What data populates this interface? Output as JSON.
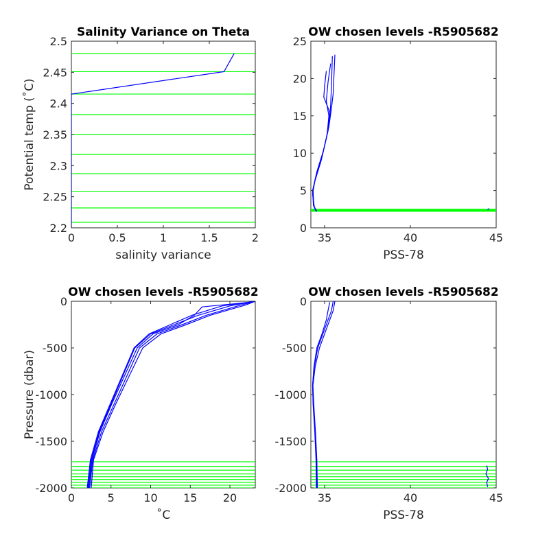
{
  "colors": {
    "profile": "#0000ff",
    "levels": "#00ff00",
    "axis": "#262626"
  },
  "chart_data": [
    {
      "type": "line",
      "title": "Salinity Variance on Theta",
      "xlabel": "salinity variance",
      "ylabel": "Potential temp (˚C)",
      "xlim": [
        0,
        2
      ],
      "ylim": [
        2.2,
        2.5
      ],
      "xticks": [
        0,
        0.5,
        1,
        1.5,
        2
      ],
      "xtick_labels": [
        "0",
        "0.5",
        "1",
        "1.5",
        "2"
      ],
      "yticks": [
        2.2,
        2.25,
        2.3,
        2.35,
        2.4,
        2.45,
        2.5
      ],
      "ytick_labels": [
        "2.2",
        "2.25",
        "2.3",
        "2.35",
        "2.4",
        "2.45",
        "2.5"
      ],
      "hlines": [
        2.209,
        2.232,
        2.258,
        2.287,
        2.318,
        2.35,
        2.382,
        2.415,
        2.451,
        2.48
      ],
      "series": [
        {
          "x": [
            0,
            0,
            0,
            1.66,
            1.77
          ],
          "y": [
            2.2,
            2.3,
            2.415,
            2.451,
            2.48
          ]
        }
      ]
    },
    {
      "type": "line",
      "title": "OW chosen levels -R5905682",
      "xlabel": "PSS-78",
      "ylabel": "",
      "xlim": [
        34.2,
        45
      ],
      "ylim": [
        0,
        25
      ],
      "xticks": [
        35,
        40,
        45
      ],
      "xtick_labels": [
        "35",
        "40",
        "45"
      ],
      "yticks": [
        0,
        5,
        10,
        15,
        20,
        25
      ],
      "ytick_labels": [
        "0",
        "5",
        "10",
        "15",
        "20",
        "25"
      ],
      "hlines": [
        2.21,
        2.23,
        2.26,
        2.29,
        2.32,
        2.35,
        2.38,
        2.415,
        2.45,
        2.48
      ],
      "series": [
        {
          "x": [
            34.55,
            34.4,
            34.3,
            34.4,
            34.8,
            35.1,
            35.3,
            35.35,
            35.4,
            35.45
          ],
          "y": [
            2.2,
            2.8,
            4.5,
            6,
            9,
            12,
            14.5,
            16.5,
            19,
            23
          ]
        },
        {
          "x": [
            34.55,
            34.38,
            34.32,
            34.45,
            34.85,
            35.15,
            35.25,
            35.1,
            35.2,
            35.35
          ],
          "y": [
            2.2,
            2.9,
            4.8,
            6.5,
            9.5,
            12.5,
            15,
            17,
            19.5,
            22
          ]
        },
        {
          "x": [
            34.5,
            34.35,
            34.3,
            34.5,
            34.9,
            35.2,
            35.3,
            34.95,
            35.0,
            35.1
          ],
          "y": [
            2.25,
            3.0,
            5.0,
            7,
            10,
            13,
            15.5,
            17.5,
            19,
            21
          ]
        },
        {
          "x": [
            34.5,
            34.36,
            34.33,
            34.55,
            34.95,
            35.25,
            35.4,
            35.5,
            35.55,
            35.6
          ],
          "y": [
            2.25,
            3.1,
            5.2,
            7.5,
            10.5,
            13.5,
            16,
            18,
            20.5,
            23.2
          ]
        },
        {
          "x": [
            44.5,
            44.6
          ],
          "y": [
            2.4,
            2.6
          ]
        }
      ]
    },
    {
      "type": "line",
      "title": "OW chosen levels -R5905682",
      "xlabel": "˚C",
      "ylabel": "Pressure (dbar)",
      "xlim": [
        0,
        23.2
      ],
      "ylim": [
        -2000,
        0
      ],
      "xticks": [
        0,
        5,
        10,
        15,
        20
      ],
      "xtick_labels": [
        "0",
        "5",
        "10",
        "15",
        "20"
      ],
      "yticks": [
        -2000,
        -1500,
        -1000,
        -500,
        0
      ],
      "ytick_labels": [
        "-2000",
        "-1500",
        "-1000",
        "-500",
        "0"
      ],
      "hlines": [
        -1720,
        -1770,
        -1810,
        -1850,
        -1880,
        -1910,
        -1940,
        -1970,
        -2000
      ],
      "series": [
        {
          "x": [
            2.1,
            2.5,
            3.5,
            5,
            6.5,
            8,
            10,
            13,
            16,
            20,
            23.2
          ],
          "y": [
            -2000,
            -1700,
            -1400,
            -1100,
            -800,
            -500,
            -350,
            -250,
            -150,
            -50,
            0
          ]
        },
        {
          "x": [
            2.3,
            2.7,
            3.8,
            5.4,
            7.0,
            8.6,
            10.8,
            14,
            17,
            21,
            23.2
          ],
          "y": [
            -2000,
            -1700,
            -1400,
            -1100,
            -800,
            -500,
            -350,
            -250,
            -150,
            -50,
            0
          ]
        },
        {
          "x": [
            2.2,
            2.6,
            3.6,
            5.1,
            6.7,
            8.3,
            10.3,
            13.5,
            15.5,
            16.5,
            23.2
          ],
          "y": [
            -2000,
            -1700,
            -1400,
            -1100,
            -800,
            -500,
            -350,
            -250,
            -150,
            -60,
            -5
          ]
        },
        {
          "x": [
            2.5,
            2.8,
            4.0,
            5.6,
            7.3,
            9.0,
            11.3,
            14.5,
            17.5,
            22,
            23.2
          ],
          "y": [
            -2000,
            -1700,
            -1400,
            -1100,
            -800,
            -500,
            -350,
            -250,
            -150,
            -40,
            0
          ]
        },
        {
          "x": [
            2.0,
            2.4,
            3.4,
            4.9,
            6.4,
            7.9,
            9.8,
            12.5,
            15.2,
            19,
            23.2
          ],
          "y": [
            -2000,
            -1700,
            -1400,
            -1100,
            -800,
            -500,
            -350,
            -250,
            -150,
            -50,
            0
          ]
        }
      ]
    },
    {
      "type": "line",
      "title": "OW chosen levels -R5905682",
      "xlabel": "PSS-78",
      "ylabel": "",
      "xlim": [
        34.2,
        45
      ],
      "ylim": [
        -2000,
        0
      ],
      "xticks": [
        35,
        40,
        45
      ],
      "xtick_labels": [
        "35",
        "40",
        "45"
      ],
      "yticks": [
        -2000,
        -1500,
        -1000,
        -500,
        0
      ],
      "ytick_labels": [
        "-2000",
        "-1500",
        "-1000",
        "-500",
        "0"
      ],
      "hlines": [
        -1720,
        -1770,
        -1810,
        -1850,
        -1880,
        -1910,
        -1940,
        -1970,
        -2000
      ],
      "series": [
        {
          "x": [
            34.55,
            34.53,
            34.45,
            34.35,
            34.3,
            34.4,
            34.6,
            34.9,
            35.2,
            35.4,
            35.5
          ],
          "y": [
            -2000,
            -1700,
            -1400,
            -1100,
            -900,
            -700,
            -500,
            -350,
            -200,
            -100,
            0
          ]
        },
        {
          "x": [
            34.58,
            34.55,
            34.47,
            34.37,
            34.32,
            34.45,
            34.7,
            35.0,
            35.3,
            35.5,
            35.6
          ],
          "y": [
            -2000,
            -1700,
            -1400,
            -1100,
            -900,
            -700,
            -500,
            -350,
            -200,
            -100,
            0
          ]
        },
        {
          "x": [
            34.52,
            34.5,
            34.43,
            34.33,
            34.3,
            34.38,
            34.55,
            34.85,
            35.1,
            35.2,
            35.3
          ],
          "y": [
            -2000,
            -1700,
            -1400,
            -1100,
            -900,
            -700,
            -500,
            -350,
            -200,
            -100,
            -10
          ]
        },
        {
          "x": [
            44.45,
            44.5,
            44.4,
            44.55,
            44.45,
            44.5
          ],
          "y": [
            -1760,
            -1800,
            -1850,
            -1900,
            -1940,
            -1990
          ]
        }
      ]
    }
  ]
}
